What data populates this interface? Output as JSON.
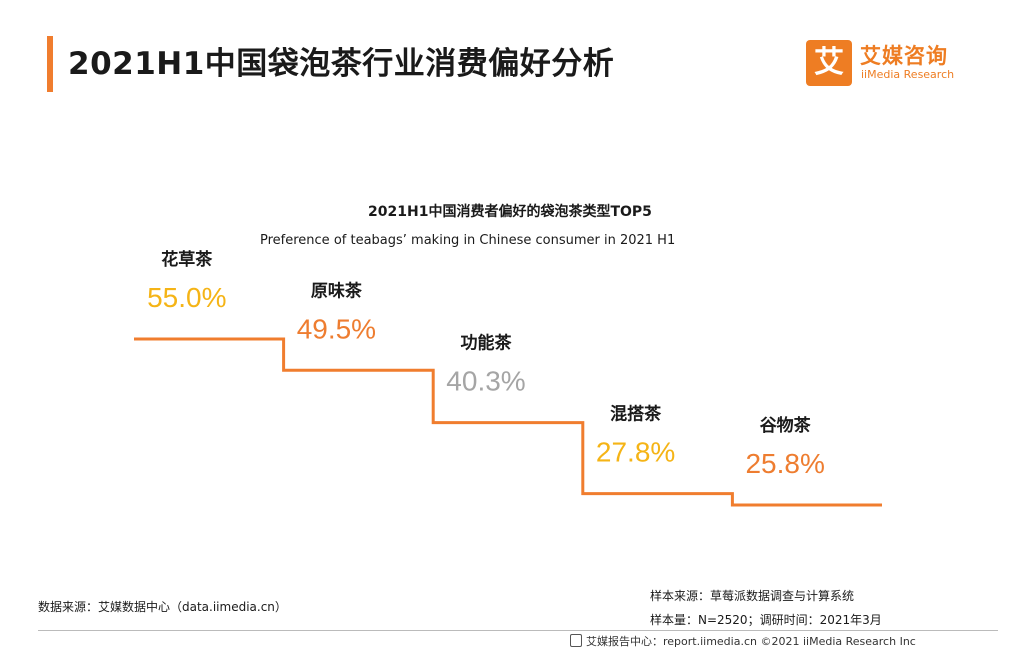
{
  "page": {
    "title": "2021H1中国袋泡茶行业消费偏好分析"
  },
  "logo": {
    "mark": "艾",
    "name_cn": "艾媒咨询",
    "name_en": "iiMedia Research"
  },
  "colors": {
    "accent": "#f07d2e",
    "line": "#f07d2e",
    "yellow": "#f5b416",
    "orange": "#ee7d30",
    "gray": "#a5a5a5"
  },
  "chart_data": {
    "type": "line",
    "title": "2021H1中国消费者偏好的袋泡茶类型TOP5",
    "subtitle": "Preference of teabags’  making in Chinese consumer in 2021 H1",
    "categories": [
      "花草茶",
      "原味茶",
      "功能茶",
      "混搭茶",
      "谷物茶"
    ],
    "values": [
      55.0,
      49.5,
      40.3,
      27.8,
      25.8
    ],
    "value_labels": [
      "55.0%",
      "49.5%",
      "40.3%",
      "27.8%",
      "25.8%"
    ],
    "value_colors": [
      "#f5b416",
      "#ee7d30",
      "#a5a5a5",
      "#f5b416",
      "#ee7d30"
    ],
    "unit": "%",
    "style": "step"
  },
  "footer": {
    "source_left": "数据来源：艾媒数据中心（data.iimedia.cn）",
    "sample_source": "样本来源：草莓派数据调查与计算系统",
    "sample_size": "样本量：N=2520；调研时间：2021年3月",
    "report_center": "艾媒报告中心：report.iimedia.cn  ©2021  iiMedia Research  Inc"
  }
}
